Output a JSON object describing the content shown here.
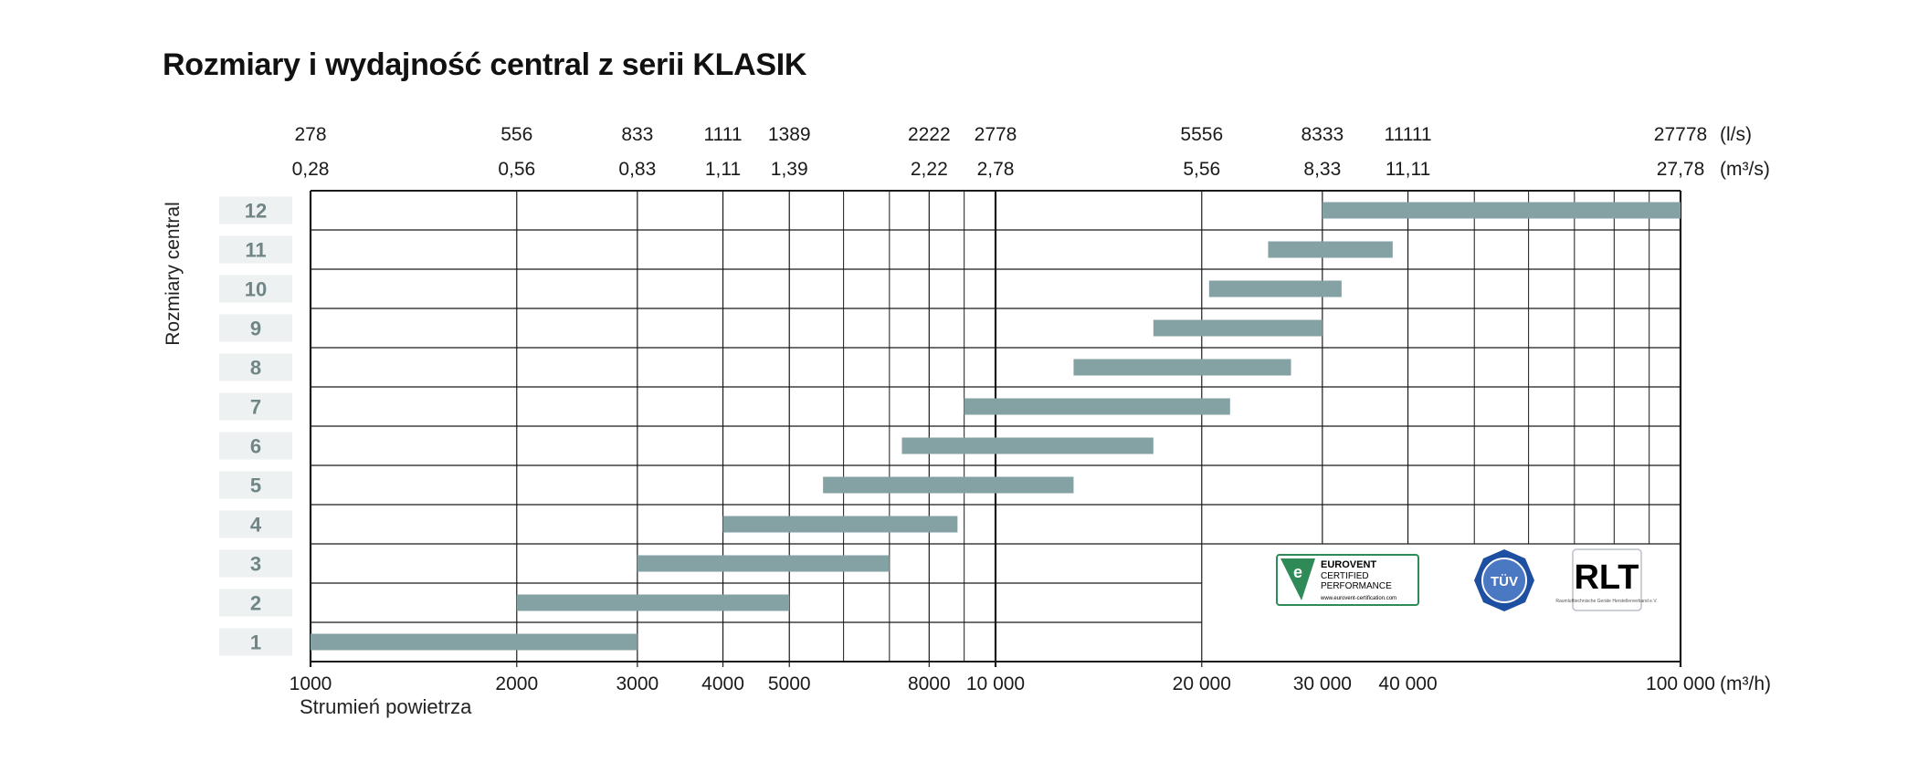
{
  "chart_data": {
    "type": "bar",
    "orientation": "horizontal-range",
    "title": "Rozmiary i wydajność central z serii KLASIK",
    "ylabel": "Rozmiary central",
    "xlabel": "Strumień powietrza",
    "x_scale": "log",
    "xlim": [
      1000,
      100000
    ],
    "grid": true,
    "bar_color": "#84a2a3",
    "size_label_bg": "#eef1f1",
    "size_label_color": "#6f8586",
    "x_ticks_m3h": [
      {
        "value": 1000,
        "label": "1000"
      },
      {
        "value": 2000,
        "label": "2000"
      },
      {
        "value": 3000,
        "label": "3000"
      },
      {
        "value": 4000,
        "label": "4000"
      },
      {
        "value": 5000,
        "label": "5000"
      },
      {
        "value": 8000,
        "label": "8000"
      },
      {
        "value": 10000,
        "label": "10 000"
      },
      {
        "value": 20000,
        "label": "20 000"
      },
      {
        "value": 30000,
        "label": "30 000"
      },
      {
        "value": 40000,
        "label": "40 000"
      },
      {
        "value": 100000,
        "label": "100 000"
      }
    ],
    "x_unit_m3h": "(m³/h)",
    "top_ticks_ls": [
      {
        "value": 1000,
        "label": "278"
      },
      {
        "value": 2000,
        "label": "556"
      },
      {
        "value": 3000,
        "label": "833"
      },
      {
        "value": 4000,
        "label": "1111"
      },
      {
        "value": 5000,
        "label": "1389"
      },
      {
        "value": 8000,
        "label": "2222"
      },
      {
        "value": 10000,
        "label": "2778"
      },
      {
        "value": 20000,
        "label": "5556"
      },
      {
        "value": 30000,
        "label": "8333"
      },
      {
        "value": 40000,
        "label": "11111"
      },
      {
        "value": 100000,
        "label": "27778"
      }
    ],
    "top_unit_ls": "(l/s)",
    "top_ticks_m3s": [
      {
        "value": 1000,
        "label": "0,28"
      },
      {
        "value": 2000,
        "label": "0,56"
      },
      {
        "value": 3000,
        "label": "0,83"
      },
      {
        "value": 4000,
        "label": "1,11"
      },
      {
        "value": 5000,
        "label": "1,39"
      },
      {
        "value": 8000,
        "label": "2,22"
      },
      {
        "value": 10000,
        "label": "2,78"
      },
      {
        "value": 20000,
        "label": "5,56"
      },
      {
        "value": 30000,
        "label": "8,33"
      },
      {
        "value": 40000,
        "label": "11,11"
      },
      {
        "value": 100000,
        "label": "27,78"
      }
    ],
    "top_unit_m3s": "(m³/s)",
    "minor_grid_m3h": [
      6000,
      7000,
      9000,
      50000,
      60000,
      70000,
      80000,
      90000
    ],
    "series": [
      {
        "size": "12",
        "min": 30000,
        "max": 100000
      },
      {
        "size": "11",
        "min": 25000,
        "max": 38000
      },
      {
        "size": "10",
        "min": 20500,
        "max": 32000
      },
      {
        "size": "9",
        "min": 17000,
        "max": 30000
      },
      {
        "size": "8",
        "min": 13000,
        "max": 27000
      },
      {
        "size": "7",
        "min": 9000,
        "max": 22000
      },
      {
        "size": "6",
        "min": 7300,
        "max": 17000
      },
      {
        "size": "5",
        "min": 5600,
        "max": 13000
      },
      {
        "size": "4",
        "min": 4000,
        "max": 8800
      },
      {
        "size": "3",
        "min": 3000,
        "max": 7000
      },
      {
        "size": "2",
        "min": 2000,
        "max": 5000
      },
      {
        "size": "1",
        "min": 1000,
        "max": 3000
      }
    ]
  },
  "logos": {
    "eurovent": {
      "line1": "EUROVENT",
      "line2": "CERTIFIED",
      "line3": "PERFORMANCE",
      "url": "www.eurovent-certification.com",
      "color": "#2e8b57"
    },
    "tuv": {
      "text": "TÜV",
      "color": "#1f4fa0"
    },
    "rlt": {
      "text": "RLT",
      "subtext": "Raumlufttechnische Geräte Herstellerverband e.V.",
      "color": "#1f4fa0"
    }
  }
}
